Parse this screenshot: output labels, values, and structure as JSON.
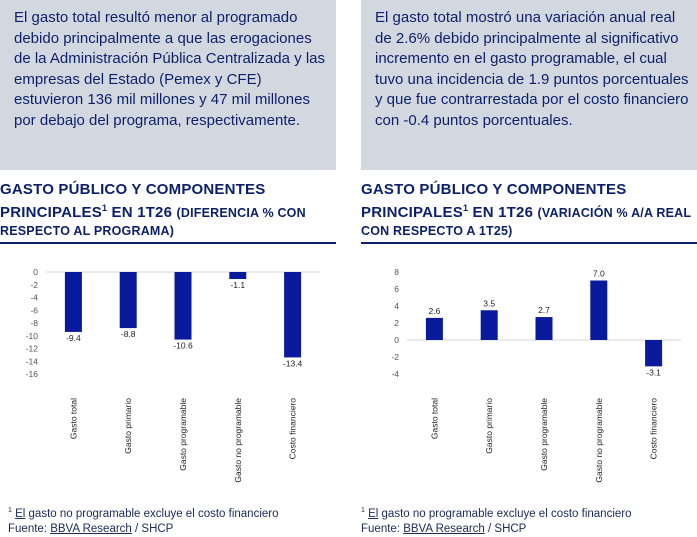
{
  "left": {
    "summary": "El gasto total resultó menor al programado debido principalmente a que las erogaciones de la Administración Pública Centralizada y las empresas del Estado (Pemex y CFE) estuvieron 136 mil millones y 47 mil millones por debajo del programa, respectivamente.",
    "title_main": "GASTO PÚBLICO Y COMPONENTES PRINCIPALES",
    "title_sup": "1",
    "title_period": " EN 1T26 ",
    "title_sub": "(DIFERENCIA % CON RESPECTO AL PROGRAMA)",
    "footnote_mark": "1",
    "footnote_word": "El",
    "footnote_rest": " gasto no programable excluye el costo financiero",
    "source_label": "Fuente: ",
    "source_org": "BBVA Research",
    "source_rest": " / SHCP"
  },
  "right": {
    "summary": "El gasto total mostró una variación anual real de 2.6% debido principalmente al significativo incremento en el gasto programable, el cual tuvo una incidencia de 1.9 puntos porcentuales y que fue contrarrestada por el costo financiero con -0.4 puntos porcentuales.",
    "title_main": "GASTO PÚBLICO Y COMPONENTES PRINCIPALES",
    "title_sup": "1",
    "title_period": " EN 1T26 ",
    "title_sub": "(VARIACIÓN % A/A REAL CON RESPECTO A 1T25)",
    "footnote_mark": "1",
    "footnote_word": "El",
    "footnote_rest": " gasto no programable excluye el costo financiero",
    "source_label": "Fuente: ",
    "source_org": "BBVA Research",
    "source_rest": " / SHCP"
  },
  "chart_data": [
    {
      "type": "bar",
      "categories": [
        "Gasto total",
        "Gasto primario",
        "Gasto programable",
        "Gasto no programable",
        "Costo financiero"
      ],
      "values": [
        -9.4,
        -8.8,
        -10.6,
        -1.1,
        -13.4
      ],
      "data_labels": [
        "-9.4",
        "-8.8",
        "-10.6",
        "-1.1",
        "-13.4"
      ],
      "yticks": [
        "0",
        "-2",
        "-4",
        "-6",
        "-8",
        "-10",
        "-12",
        "-14",
        "-16"
      ],
      "ylim": [
        -16,
        0
      ],
      "color": "#0a1a9c"
    },
    {
      "type": "bar",
      "categories": [
        "Gasto total",
        "Gasto primario",
        "Gasto programable",
        "Gasto no programable",
        "Costo financiero"
      ],
      "values": [
        2.6,
        3.5,
        2.7,
        7.0,
        -3.1
      ],
      "data_labels": [
        "2.6",
        "3.5",
        "2.7",
        "7.0",
        "-3.1"
      ],
      "yticks": [
        "8",
        "6",
        "4",
        "2",
        "0",
        "-2",
        "-4"
      ],
      "ylim": [
        -4,
        8
      ],
      "color": "#0a1a9c"
    }
  ]
}
